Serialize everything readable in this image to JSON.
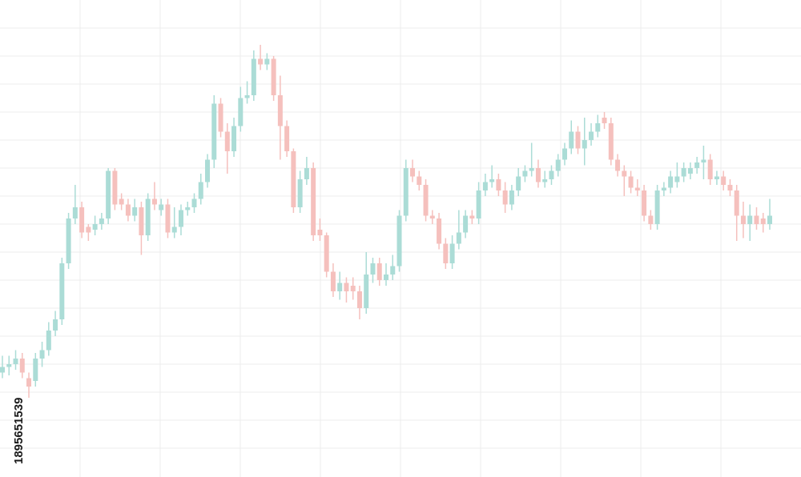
{
  "chart_data": {
    "type": "candlestick",
    "image_id": "1895651539",
    "ylim": [
      0,
      17
    ],
    "yticks": [
      1,
      2,
      3,
      4,
      5,
      6,
      7,
      8,
      9,
      10,
      11,
      12,
      13,
      14,
      15,
      16
    ],
    "grid": true,
    "up_color": "#abdcd6",
    "down_color": "#f5c0bd",
    "open": [
      3.7,
      3.9,
      4.0,
      4.2,
      3.5,
      3.4,
      4.2,
      4.5,
      5.2,
      5.6,
      7.6,
      9.2,
      9.6,
      8.9,
      8.8,
      9.0,
      9.2,
      10.9,
      9.9,
      9.7,
      9.3,
      9.6,
      8.6,
      9.9,
      9.5,
      9.7,
      8.7,
      8.9,
      9.5,
      9.6,
      9.9,
      10.5,
      11.3,
      13.3,
      12.3,
      11.6,
      12.5,
      13.5,
      13.6,
      14.9,
      14.7,
      14.9,
      13.6,
      12.5,
      11.6,
      9.6,
      10.6,
      11.0,
      8.8,
      8.6,
      7.3,
      6.6,
      6.9,
      6.8,
      6.6,
      6.0,
      7.2,
      7.6,
      7.0,
      7.2,
      7.5,
      9.3,
      11.0,
      10.7,
      10.4,
      9.3,
      9.2,
      8.3,
      7.6,
      8.3,
      8.7,
      9.3,
      9.2,
      10.2,
      10.5,
      10.6,
      10.2,
      9.7,
      10.2,
      10.7,
      10.9,
      11.0,
      10.5,
      10.6,
      10.9,
      11.3,
      11.7,
      12.3,
      11.7,
      12.0,
      12.3,
      12.8,
      12.6,
      11.3,
      10.9,
      10.7,
      10.3,
      10.2,
      9.3,
      9.0,
      10.2,
      10.3,
      10.5,
      10.7,
      10.8,
      11.0,
      11.2,
      11.3,
      10.6,
      10.7,
      10.4,
      10.2,
      9.3,
      9.0,
      9.3,
      9.2,
      9.0
    ],
    "high": [
      4.3,
      4.3,
      4.5,
      4.4,
      3.7,
      4.4,
      4.8,
      5.5,
      5.9,
      7.8,
      9.4,
      10.4,
      9.8,
      9.0,
      9.3,
      9.4,
      11.0,
      11.0,
      10.1,
      9.9,
      9.9,
      9.8,
      10.1,
      10.5,
      9.9,
      9.9,
      9.6,
      9.7,
      9.8,
      10.1,
      10.8,
      11.5,
      13.6,
      13.5,
      12.6,
      12.8,
      13.9,
      14.1,
      15.2,
      15.4,
      15.1,
      15.0,
      14.3,
      12.7,
      11.7,
      10.9,
      11.4,
      11.2,
      9.2,
      8.7,
      7.6,
      7.3,
      7.1,
      7.1,
      6.8,
      8.0,
      7.8,
      7.8,
      7.6,
      7.9,
      9.5,
      11.3,
      11.3,
      10.9,
      10.6,
      9.5,
      9.4,
      8.5,
      8.6,
      9.5,
      9.5,
      9.5,
      10.5,
      10.8,
      11.1,
      10.8,
      10.5,
      10.4,
      11.0,
      11.1,
      11.9,
      11.3,
      10.9,
      11.1,
      11.5,
      11.9,
      12.7,
      12.5,
      12.8,
      12.6,
      12.9,
      13.0,
      12.8,
      11.5,
      11.1,
      10.9,
      10.6,
      10.4,
      9.5,
      10.4,
      10.5,
      10.9,
      11.2,
      11.2,
      11.2,
      11.4,
      11.8,
      11.5,
      10.9,
      10.9,
      10.6,
      10.4,
      9.8,
      9.7,
      9.6,
      9.4,
      9.9
    ],
    "low": [
      3.5,
      3.6,
      3.8,
      3.5,
      2.8,
      3.2,
      3.9,
      4.3,
      5.0,
      5.4,
      7.4,
      9.0,
      8.5,
      8.4,
      8.6,
      8.8,
      9.0,
      9.5,
      9.5,
      9.1,
      9.1,
      7.9,
      8.4,
      9.5,
      9.3,
      8.5,
      8.5,
      8.6,
      9.3,
      9.4,
      9.7,
      10.3,
      11.0,
      12.1,
      10.8,
      11.4,
      12.3,
      13.3,
      13.4,
      14.5,
      14.5,
      13.4,
      11.3,
      11.4,
      9.4,
      9.4,
      10.4,
      8.4,
      8.4,
      7.1,
      6.4,
      6.3,
      6.2,
      6.3,
      5.6,
      5.8,
      6.9,
      6.8,
      6.8,
      7.0,
      7.3,
      9.1,
      10.5,
      10.2,
      9.1,
      9.0,
      8.1,
      7.4,
      7.4,
      8.1,
      8.5,
      9.0,
      9.0,
      10.0,
      10.3,
      10.0,
      9.4,
      9.5,
      10.0,
      10.5,
      10.7,
      10.3,
      10.3,
      10.4,
      10.7,
      11.1,
      11.5,
      11.5,
      11.1,
      11.8,
      12.1,
      12.4,
      11.1,
      10.7,
      10.0,
      10.1,
      10.0,
      9.1,
      8.8,
      8.8,
      10.0,
      10.1,
      10.3,
      10.5,
      10.6,
      10.8,
      10.6,
      10.4,
      10.4,
      10.2,
      10.0,
      8.4,
      8.5,
      8.4,
      8.8,
      8.7,
      8.8
    ],
    "close": [
      3.9,
      4.0,
      4.2,
      3.7,
      3.2,
      4.2,
      4.5,
      5.2,
      5.6,
      7.6,
      9.2,
      9.6,
      8.7,
      8.7,
      9.0,
      9.2,
      10.9,
      9.7,
      9.7,
      9.3,
      9.6,
      8.6,
      9.9,
      9.7,
      9.7,
      8.7,
      8.9,
      9.5,
      9.6,
      9.9,
      10.5,
      11.3,
      13.3,
      12.3,
      11.6,
      12.5,
      13.5,
      13.6,
      14.9,
      14.7,
      14.9,
      13.6,
      12.5,
      11.6,
      9.6,
      10.6,
      11.0,
      8.6,
      8.6,
      7.3,
      6.6,
      6.9,
      6.6,
      6.6,
      6.0,
      7.2,
      7.6,
      7.0,
      7.2,
      7.5,
      9.3,
      11.0,
      10.7,
      10.4,
      9.3,
      9.2,
      8.3,
      7.6,
      8.3,
      8.7,
      9.3,
      9.2,
      10.2,
      10.5,
      10.6,
      10.2,
      9.7,
      10.2,
      10.7,
      10.9,
      11.0,
      10.5,
      10.6,
      10.9,
      11.3,
      11.7,
      12.3,
      11.7,
      12.0,
      12.3,
      12.6,
      12.6,
      11.3,
      10.9,
      10.7,
      10.3,
      10.2,
      9.3,
      9.0,
      10.2,
      10.3,
      10.7,
      10.7,
      11.0,
      11.0,
      11.2,
      11.3,
      10.6,
      10.7,
      10.4,
      10.2,
      9.3,
      9.0,
      9.3,
      9.0,
      9.0,
      9.3
    ]
  }
}
